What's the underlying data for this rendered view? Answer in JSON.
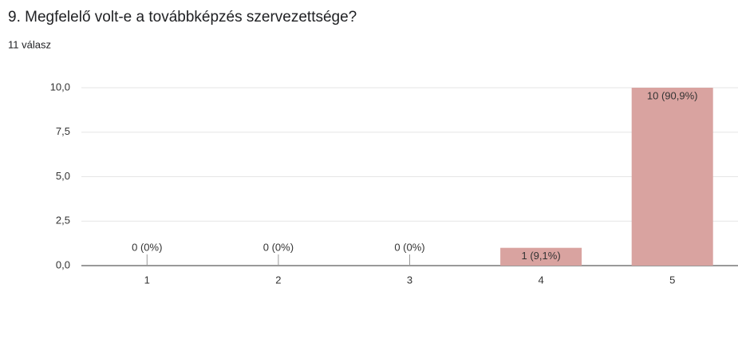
{
  "header": {
    "title": "9. Megfelelő volt-e a továbbképzés szervezettsége?",
    "subtitle": "11 válasz"
  },
  "chart_data": {
    "type": "bar",
    "categories": [
      "1",
      "2",
      "3",
      "4",
      "5"
    ],
    "values": [
      0,
      0,
      0,
      1,
      10
    ],
    "value_labels": [
      "0 (0%)",
      "0 (0%)",
      "0 (0%)",
      "1 (9,1%)",
      "10 (90,9%)"
    ],
    "color": "#d9a3a0",
    "ylim": [
      0,
      10
    ],
    "yticks": [
      {
        "value": 0,
        "label": "0,0"
      },
      {
        "value": 2.5,
        "label": "2,5"
      },
      {
        "value": 5,
        "label": "5,0"
      },
      {
        "value": 7.5,
        "label": "7,5"
      },
      {
        "value": 10,
        "label": "10,0"
      }
    ],
    "grid": true
  }
}
